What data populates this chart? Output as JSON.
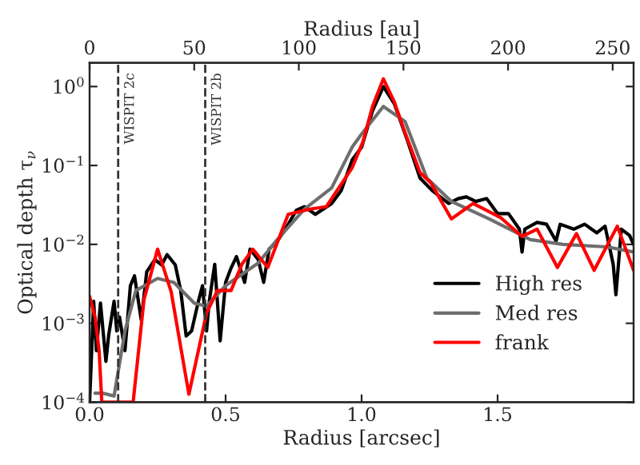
{
  "chart_data": {
    "type": "line",
    "xlabel": "Radius [arcsec]",
    "ylabel": "Optical depth τ$_{ν}$",
    "x2label": "Radius [au]",
    "log": "y",
    "xlim": [
      0,
      2.0
    ],
    "xticks": [
      {
        "value": 0,
        "label": "0.0"
      },
      0.5,
      {
        "value": 1,
        "label": "1.0"
      },
      1.5
    ],
    "x2lim": [
      0,
      260
    ],
    "x2ticks": [
      0,
      50,
      100,
      150,
      200,
      250
    ],
    "ylim": [
      0.0001,
      2
    ],
    "yticks": [
      {
        "value": 0.0001,
        "label": "10$^{−4}$"
      },
      {
        "value": 0.001,
        "label": "10$^{−3}$"
      },
      {
        "value": 0.01,
        "label": "10$^{−2}$"
      },
      {
        "value": 0.1,
        "label": "10$^{−1}$"
      },
      {
        "value": 1,
        "label": "10$^{0}$"
      }
    ],
    "grid": false,
    "legend": "bottom right",
    "line_style": "solid",
    "marker": "none",
    "ref_lines": [
      {
        "axis": "x",
        "value": 0.105,
        "label": "WISPIT 2c",
        "color": "#333333",
        "line_style": "dashed"
      },
      {
        "axis": "x",
        "value": 0.425,
        "label": "WISPIT 2b",
        "color": "#333333",
        "line_style": "dashed"
      }
    ],
    "series": [
      {
        "name": "High res",
        "color": "#000000",
        "x": [
          0.0,
          0.015,
          0.025,
          0.04,
          0.06,
          0.07,
          0.09,
          0.1,
          0.11,
          0.13,
          0.15,
          0.165,
          0.19,
          0.21,
          0.24,
          0.265,
          0.285,
          0.315,
          0.335,
          0.355,
          0.375,
          0.4,
          0.415,
          0.43,
          0.44,
          0.46,
          0.48,
          0.5,
          0.52,
          0.54,
          0.57,
          0.59,
          0.62,
          0.64,
          0.66,
          0.69,
          0.72,
          0.76,
          0.79,
          0.83,
          0.89,
          0.925,
          0.965,
          1.0,
          1.04,
          1.08,
          1.12,
          1.17,
          1.215,
          1.26,
          1.32,
          1.355,
          1.385,
          1.42,
          1.46,
          1.5,
          1.54,
          1.58,
          1.59,
          1.6,
          1.645,
          1.68,
          1.715,
          1.73,
          1.78,
          1.82,
          1.865,
          1.895,
          1.925,
          1.935,
          1.955,
          1.985,
          2.0
        ],
        "values": [
          0.0001,
          0.0019,
          0.00045,
          0.0018,
          0.00033,
          0.0007,
          0.0019,
          0.0008,
          0.0012,
          0.00045,
          0.003,
          0.004,
          0.0011,
          0.0045,
          0.0064,
          0.0055,
          0.0074,
          0.0055,
          0.0026,
          0.00069,
          0.0008,
          0.0019,
          0.003,
          0.0008,
          0.0019,
          0.0056,
          0.0006,
          0.0033,
          0.005,
          0.007,
          0.0033,
          0.0087,
          0.0064,
          0.0033,
          0.0087,
          0.011,
          0.0156,
          0.027,
          0.03,
          0.024,
          0.033,
          0.048,
          0.117,
          0.17,
          0.49,
          1.0,
          0.61,
          0.2,
          0.069,
          0.048,
          0.033,
          0.038,
          0.04,
          0.035,
          0.038,
          0.0245,
          0.0245,
          0.0156,
          0.008,
          0.0156,
          0.019,
          0.018,
          0.011,
          0.018,
          0.0156,
          0.018,
          0.014,
          0.017,
          0.0056,
          0.0023,
          0.0156,
          0.013,
          0.01
        ]
      },
      {
        "name": "Med res",
        "color": "#6e6e6e",
        "x": [
          0.02,
          0.05,
          0.09,
          0.13,
          0.17,
          0.25,
          0.31,
          0.385,
          0.43,
          0.5,
          0.62,
          0.69,
          0.79,
          0.89,
          0.965,
          1.0,
          1.08,
          1.16,
          1.24,
          1.33,
          1.47,
          1.62,
          1.74,
          1.9,
          2.0
        ],
        "values": [
          0.00013,
          0.00013,
          0.00012,
          0.0008,
          0.0026,
          0.0037,
          0.0033,
          0.0018,
          0.00165,
          0.003,
          0.0058,
          0.0115,
          0.028,
          0.052,
          0.17,
          0.25,
          0.56,
          0.36,
          0.069,
          0.035,
          0.021,
          0.0115,
          0.01,
          0.0093,
          0.008
        ]
      },
      {
        "name": "frank",
        "color": "#ff0000",
        "x": [
          0.0,
          0.02,
          0.035,
          0.045,
          0.16,
          0.2,
          0.25,
          0.3,
          0.365,
          0.43,
          0.47,
          0.52,
          0.56,
          0.6,
          0.655,
          0.73,
          0.81,
          0.87,
          0.965,
          1.005,
          1.04,
          1.08,
          1.12,
          1.16,
          1.215,
          1.255,
          1.33,
          1.41,
          1.51,
          1.59,
          1.645,
          1.72,
          1.79,
          1.855,
          1.94,
          2.0
        ],
        "values": [
          0.0022,
          0.0012,
          0.00045,
          0.0001,
          0.0001,
          0.002,
          0.0087,
          0.0025,
          0.000126,
          0.00135,
          0.0026,
          0.0026,
          0.0056,
          0.0087,
          0.0051,
          0.024,
          0.028,
          0.03,
          0.093,
          0.2,
          0.56,
          1.25,
          0.64,
          0.26,
          0.081,
          0.06,
          0.021,
          0.033,
          0.022,
          0.0126,
          0.0156,
          0.0051,
          0.0137,
          0.0047,
          0.017,
          0.0047
        ]
      }
    ]
  }
}
